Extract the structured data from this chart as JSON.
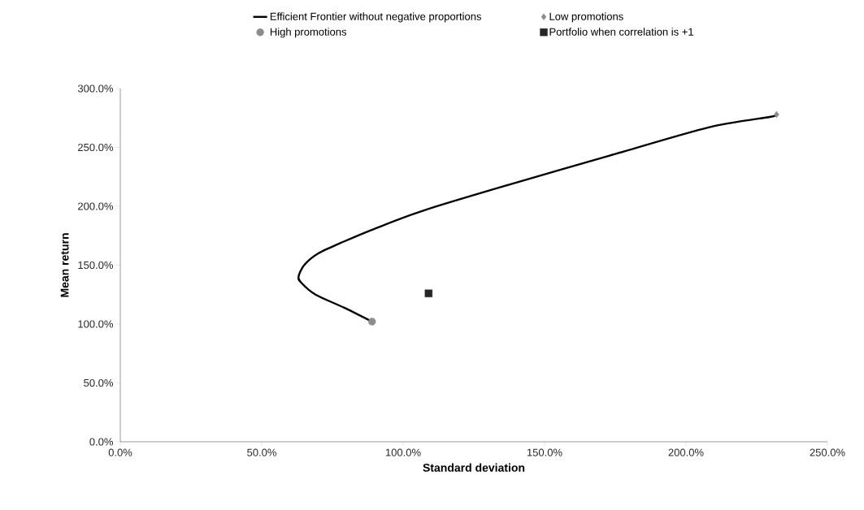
{
  "chart_data": {
    "type": "scatter",
    "xlabel": "Standard deviation",
    "ylabel": "Mean return",
    "xlim": [
      0,
      250
    ],
    "ylim": [
      0,
      300
    ],
    "xticks": [
      {
        "value": 0,
        "label": "0.0%"
      },
      {
        "value": 50,
        "label": "50.0%"
      },
      {
        "value": 100,
        "label": "100.0%"
      },
      {
        "value": 150,
        "label": "150.0%"
      },
      {
        "value": 200,
        "label": "200.0%"
      },
      {
        "value": 250,
        "label": "250.0%"
      }
    ],
    "yticks": [
      {
        "value": 0,
        "label": "0.0%"
      },
      {
        "value": 50,
        "label": "50.0%"
      },
      {
        "value": 100,
        "label": "100.0%"
      },
      {
        "value": 150,
        "label": "150.0%"
      },
      {
        "value": 200,
        "label": "200.0%"
      },
      {
        "value": 250,
        "label": "250.0%"
      },
      {
        "value": 300,
        "label": "300.0%"
      }
    ],
    "legend": "top",
    "grid": false,
    "series": [
      {
        "name": "Efficient Frontier without negative proportions",
        "type": "line",
        "color": "#000000",
        "marker": "none",
        "line_style": "solid",
        "x": [
          89,
          79,
          69,
          64,
          63,
          65,
          70,
          79,
          90,
          108,
          137,
          173,
          208,
          230,
          232
        ],
        "values": [
          102,
          114,
          125,
          135,
          140,
          150,
          160,
          170,
          181,
          197,
          218,
          243,
          267,
          276,
          278
        ]
      },
      {
        "name": "Low promotions",
        "color": "#8c8c8c",
        "marker": "diamond",
        "x": [
          232
        ],
        "values": [
          278
        ]
      },
      {
        "name": "High promotions",
        "color": "#8c8c8c",
        "marker": "circle",
        "x": [
          89
        ],
        "values": [
          102
        ]
      },
      {
        "name": "Portfolio when correlation is +1",
        "color": "#262626",
        "marker": "square",
        "x": [
          109
        ],
        "values": [
          126
        ]
      }
    ]
  }
}
